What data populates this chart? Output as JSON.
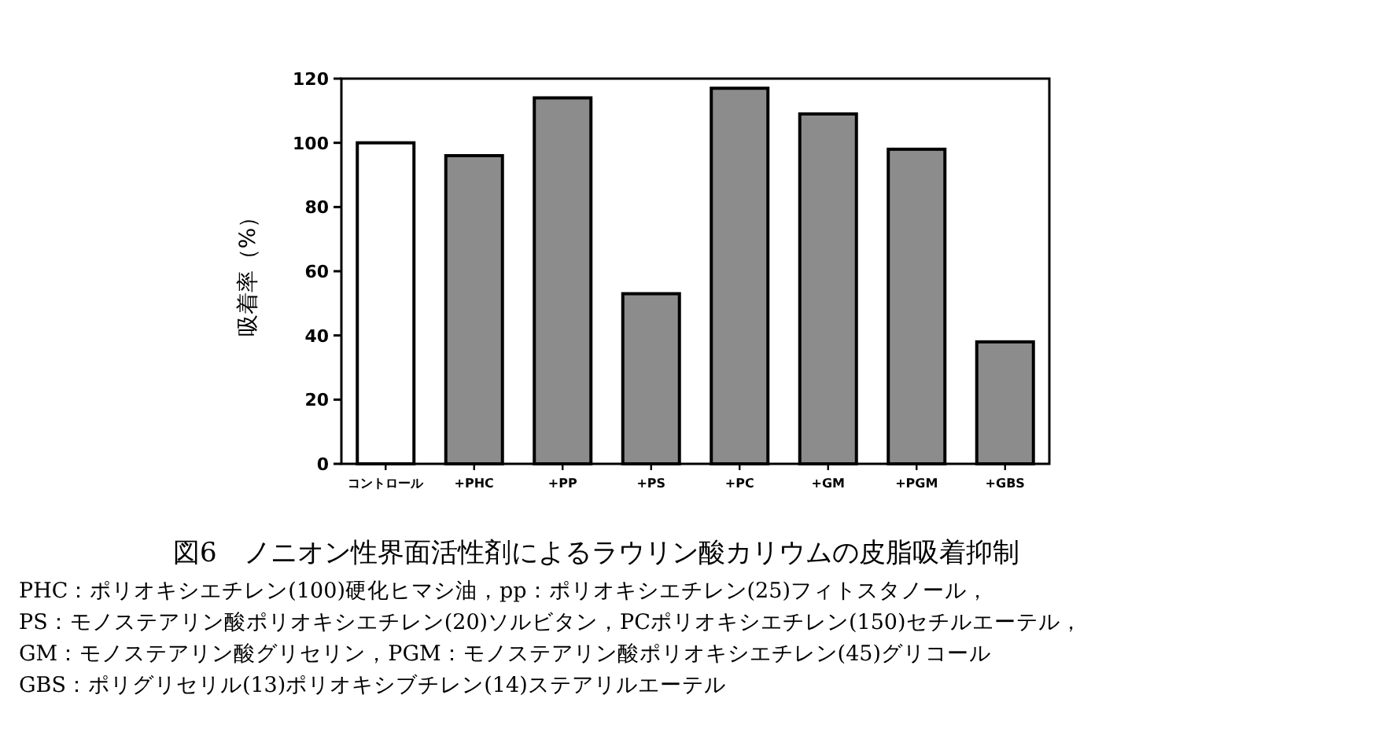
{
  "chart_data": {
    "type": "bar",
    "title": "図6　ノニオン性界面活性剤によるラウリン酸カリウムの皮脂吸着抑制",
    "ylabel": "吸着率（%）",
    "categories": [
      "コントロール",
      "+PHC",
      "+PP",
      "+PS",
      "+PC",
      "+GM",
      "+PGM",
      "+GBS"
    ],
    "values": [
      100,
      96,
      114,
      53,
      117,
      109,
      98,
      38
    ],
    "colors": [
      "#ffffff",
      "#8c8c8c",
      "#8c8c8c",
      "#8c8c8c",
      "#8c8c8c",
      "#8c8c8c",
      "#8c8c8c",
      "#8c8c8c"
    ],
    "ylim": [
      0,
      120
    ],
    "yticks": [
      0,
      20,
      40,
      60,
      80,
      100,
      120
    ],
    "grid": false,
    "annotations": [
      "PHC：ポリオキシエチレン(100)硬化ヒマシ油，pp：ポリオキシエチレン(25)フィトスタノール，",
      "PS：モノステアリン酸ポリオキシエチレン(20)ソルビタン，PCポリオキシエチレン(150)セチルエーテル，",
      "GM：モノステアリン酸グリセリン，PGM：モノステアリン酸ポリオキシエチレン(45)グリコール",
      "GBS：ポリグリセリル(13)ポリオキシブチレン(14)ステアリルエーテル"
    ]
  }
}
